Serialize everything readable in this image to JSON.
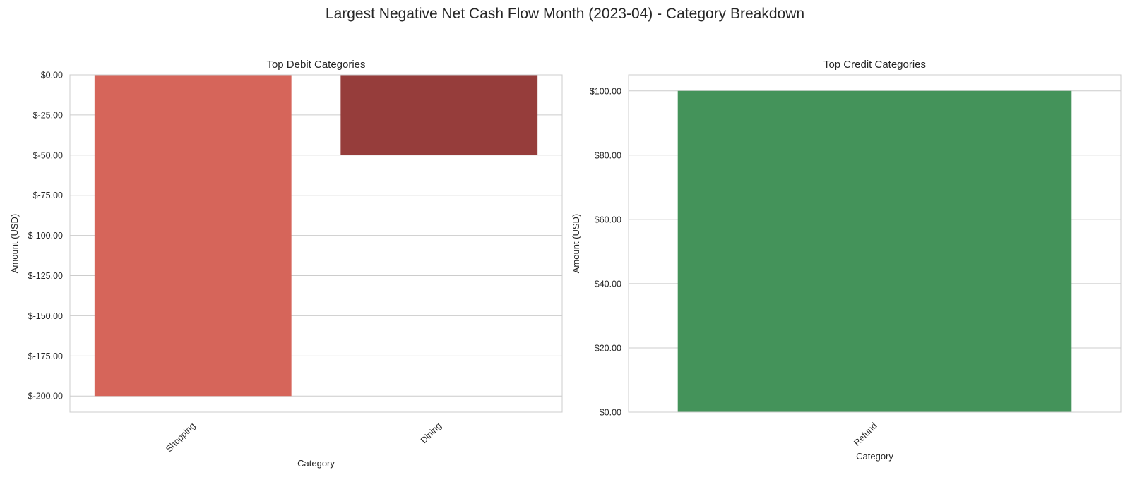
{
  "suptitle": "Largest Negative Net Cash Flow Month (2023-04) - Category Breakdown",
  "chart_data": [
    {
      "type": "bar",
      "title": "Top Debit Categories",
      "xlabel": "Category",
      "ylabel": "Amount (USD)",
      "categories": [
        "Shopping",
        "Dining"
      ],
      "values": [
        -200,
        -50
      ],
      "colors": [
        "#d6655a",
        "#963d3b"
      ],
      "ylim": [
        -210,
        0
      ],
      "yticks": [
        0,
        -25,
        -50,
        -75,
        -100,
        -125,
        -150,
        -175,
        -200
      ],
      "ytick_labels": [
        "$0.00",
        "$-25.00",
        "$-50.00",
        "$-75.00",
        "$-100.00",
        "$-125.00",
        "$-150.00",
        "$-175.00",
        "$-200.00"
      ],
      "grid": true
    },
    {
      "type": "bar",
      "title": "Top Credit Categories",
      "xlabel": "Category",
      "ylabel": "Amount (USD)",
      "categories": [
        "Refund"
      ],
      "values": [
        100
      ],
      "colors": [
        "#44935a"
      ],
      "ylim": [
        0,
        105
      ],
      "yticks": [
        0,
        20,
        40,
        60,
        80,
        100
      ],
      "ytick_labels": [
        "$0.00",
        "$20.00",
        "$40.00",
        "$60.00",
        "$80.00",
        "$100.00"
      ],
      "grid": true
    }
  ]
}
